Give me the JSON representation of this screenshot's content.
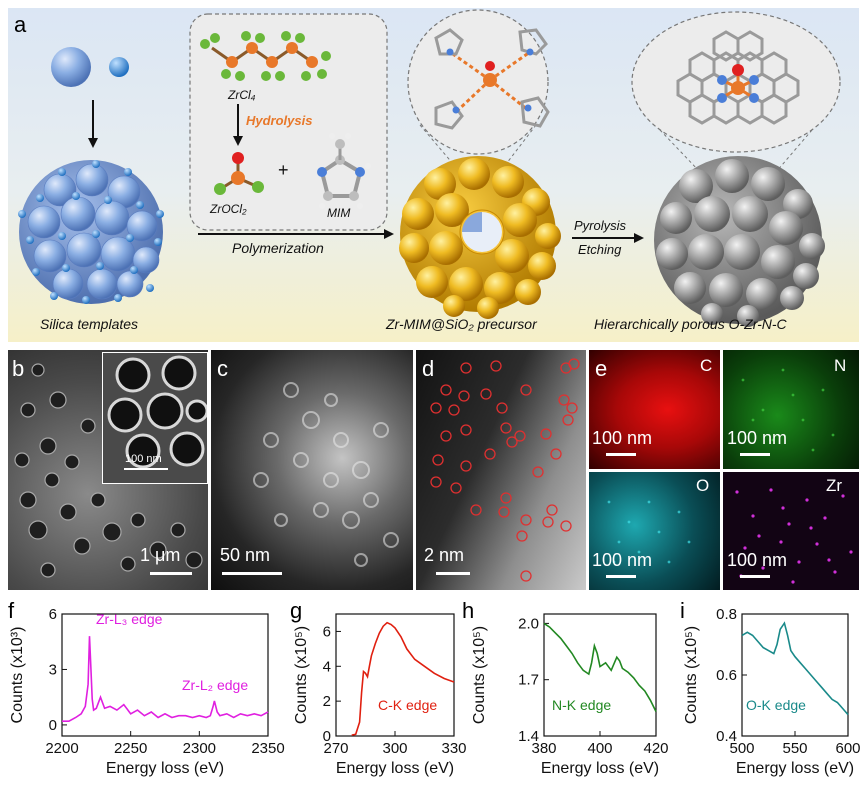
{
  "panel_labels": {
    "a": "a",
    "b": "b",
    "c": "c",
    "d": "d",
    "e": "e",
    "f": "f",
    "g": "g",
    "h": "h",
    "i": "i"
  },
  "schematic": {
    "silica_templates": "Silica templates",
    "zrcl4": "ZrCl₄",
    "hydrolysis": "Hydrolysis",
    "zrocl2": "ZrOCl₂",
    "plus": "+",
    "mim": "MIM",
    "polymerization": "Polymerization",
    "precursor": "Zr-MIM@SiO₂ precursor",
    "pyrolysis": "Pyrolysis",
    "etching": "Etching",
    "product": "Hierarchically porous O-Zr-N-C",
    "colors": {
      "silica": "#7a9fd6",
      "precursor": "#e8b41c",
      "product": "#9a9a9a",
      "hydrolysis": "#e8782a"
    }
  },
  "micrographs": {
    "b_scale": "1 μm",
    "b_inset_scale": "100 nm",
    "c_scale": "50 nm",
    "d_scale": "2 nm",
    "eds": [
      {
        "element": "C",
        "scale": "100 nm",
        "color": "#e01010"
      },
      {
        "element": "N",
        "scale": "100 nm",
        "color": "#22a020"
      },
      {
        "element": "O",
        "scale": "100 nm",
        "color": "#20c0c8"
      },
      {
        "element": "Zr",
        "scale": "100 nm",
        "color": "#c020c8"
      }
    ]
  },
  "chart_data": [
    {
      "panel": "f",
      "type": "line",
      "color": "#e020e0",
      "xlabel": "Energy loss (eV)",
      "ylabel": "Counts (x10³)",
      "xlim": [
        2200,
        2350
      ],
      "ylim": [
        -0.6,
        6
      ],
      "xticks": [
        "2200",
        "2250",
        "2300",
        "2350"
      ],
      "yticks": [
        "0",
        "3",
        "6"
      ],
      "annotations": [
        "Zr-L₃ edge",
        "Zr-L₂ edge"
      ],
      "x": [
        2200,
        2205,
        2210,
        2214,
        2217,
        2219,
        2220,
        2221,
        2222,
        2223,
        2225,
        2228,
        2231,
        2235,
        2240,
        2245,
        2250,
        2255,
        2260,
        2265,
        2270,
        2275,
        2280,
        2285,
        2290,
        2295,
        2300,
        2305,
        2308,
        2310,
        2311,
        2313,
        2315,
        2320,
        2325,
        2330,
        2335,
        2340,
        2345,
        2350
      ],
      "y": [
        0.2,
        0.2,
        0.4,
        0.6,
        1.0,
        2.2,
        4.8,
        3.2,
        1.4,
        0.8,
        0.9,
        1.5,
        0.9,
        1.0,
        0.8,
        1.1,
        0.6,
        0.8,
        0.5,
        0.7,
        0.4,
        0.6,
        0.4,
        0.5,
        0.5,
        0.4,
        0.5,
        0.4,
        0.5,
        1.0,
        1.3,
        0.7,
        0.5,
        0.6,
        0.4,
        0.6,
        0.5,
        0.6,
        0.5,
        0.7
      ]
    },
    {
      "panel": "g",
      "type": "line",
      "color": "#e02010",
      "xlabel": "Energy loss (eV)",
      "ylabel": "Counts (x10⁵)",
      "xlim": [
        270,
        330
      ],
      "ylim": [
        0,
        7
      ],
      "xticks": [
        "270",
        "300",
        "330"
      ],
      "yticks": [
        "0",
        "2",
        "4",
        "6"
      ],
      "annotations": [
        "C-K edge"
      ],
      "x": [
        278,
        280,
        282,
        283,
        284,
        285,
        286,
        287,
        288,
        290,
        292,
        294,
        296,
        298,
        300,
        303,
        306,
        310,
        315,
        320,
        325,
        330
      ],
      "y": [
        0.05,
        0.1,
        0.8,
        2.5,
        3.7,
        3.6,
        3.4,
        4.0,
        4.6,
        5.3,
        5.9,
        6.3,
        6.5,
        6.4,
        6.2,
        5.7,
        5.0,
        4.4,
        4.0,
        3.6,
        3.3,
        3.1
      ]
    },
    {
      "panel": "h",
      "type": "line",
      "color": "#228822",
      "xlabel": "Energy loss (eV)",
      "ylabel": "Counts (x10⁵)",
      "xlim": [
        380,
        420
      ],
      "ylim": [
        1.4,
        2.05
      ],
      "xticks": [
        "380",
        "400",
        "420"
      ],
      "yticks": [
        "1.4",
        "1.7",
        "2.0"
      ],
      "annotations": [
        "N-K edge"
      ],
      "x": [
        380,
        382,
        384,
        386,
        388,
        390,
        392,
        394,
        396,
        397,
        398,
        399,
        400,
        402,
        404,
        406,
        407,
        408,
        410,
        412,
        414,
        416,
        418,
        420
      ],
      "y": [
        2.0,
        1.98,
        1.95,
        1.92,
        1.88,
        1.84,
        1.79,
        1.75,
        1.73,
        1.79,
        1.88,
        1.84,
        1.77,
        1.79,
        1.75,
        1.82,
        1.8,
        1.76,
        1.74,
        1.71,
        1.67,
        1.64,
        1.59,
        1.53
      ]
    },
    {
      "panel": "i",
      "type": "line",
      "color": "#1a8a8a",
      "xlabel": "Energy loss (eV)",
      "ylabel": "Counts (x10⁵)",
      "xlim": [
        500,
        600
      ],
      "ylim": [
        0.4,
        0.8
      ],
      "xticks": [
        "500",
        "550",
        "600"
      ],
      "yticks": [
        "0.4",
        "0.6",
        "0.8"
      ],
      "annotations": [
        "O-K edge"
      ],
      "x": [
        500,
        505,
        510,
        515,
        520,
        525,
        530,
        533,
        536,
        540,
        543,
        546,
        550,
        555,
        560,
        565,
        570,
        575,
        580,
        585,
        590,
        595,
        600
      ],
      "y": [
        0.73,
        0.74,
        0.73,
        0.71,
        0.69,
        0.68,
        0.67,
        0.7,
        0.75,
        0.77,
        0.73,
        0.68,
        0.66,
        0.64,
        0.62,
        0.6,
        0.58,
        0.56,
        0.54,
        0.52,
        0.51,
        0.49,
        0.47
      ]
    }
  ]
}
